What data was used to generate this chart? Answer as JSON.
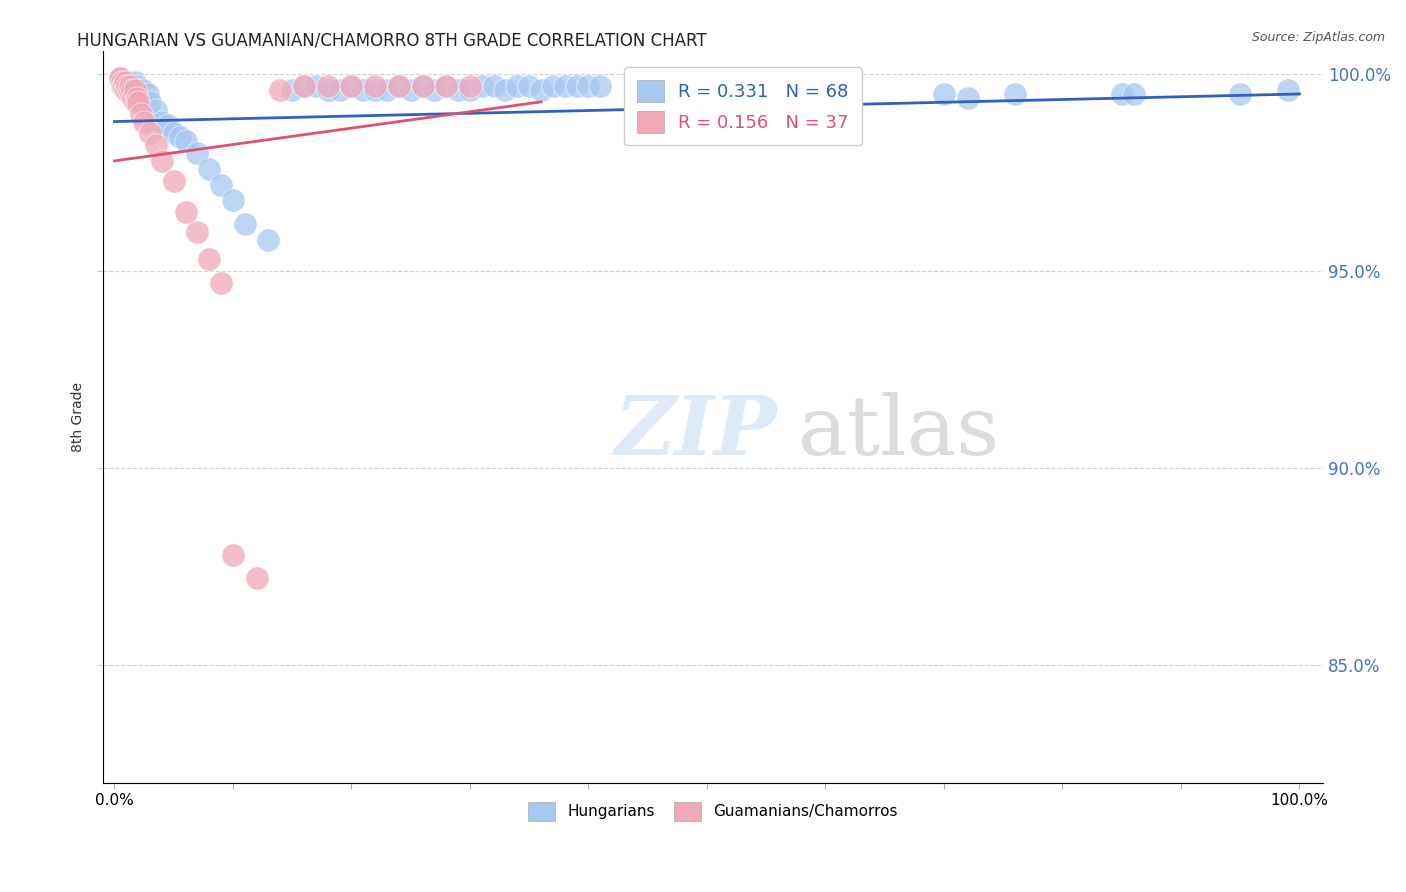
{
  "title": "HUNGARIAN VS GUAMANIAN/CHAMORRO 8TH GRADE CORRELATION CHART",
  "source": "Source: ZipAtlas.com",
  "ylabel": "8th Grade",
  "xlim": [
    0.0,
    1.0
  ],
  "ylim": [
    0.82,
    1.005
  ],
  "yticks": [
    0.85,
    0.9,
    0.95,
    1.0
  ],
  "ytick_labels": [
    "85.0%",
    "90.0%",
    "95.0%",
    "100.0%"
  ],
  "legend_blue_label": "Hungarians",
  "legend_pink_label": "Guamanians/Chamorros",
  "r_blue": 0.331,
  "n_blue": 68,
  "r_pink": 0.156,
  "n_pink": 37,
  "blue_color": "#a8c8f0",
  "pink_color": "#f0a8b8",
  "blue_line_color": "#3060c0",
  "pink_line_color": "#e05070",
  "blue_line": [
    [
      0.0,
      0.988
    ],
    [
      1.0,
      0.995
    ]
  ],
  "pink_line": [
    [
      0.0,
      0.978
    ],
    [
      0.36,
      0.993
    ]
  ],
  "blue_points_x": [
    0.005,
    0.006,
    0.007,
    0.008,
    0.009,
    0.01,
    0.011,
    0.012,
    0.013,
    0.014,
    0.015,
    0.016,
    0.017,
    0.018,
    0.019,
    0.02,
    0.022,
    0.024,
    0.025,
    0.028,
    0.03,
    0.035,
    0.04,
    0.045,
    0.05,
    0.055,
    0.06,
    0.07,
    0.08,
    0.09,
    0.1,
    0.11,
    0.13,
    0.15,
    0.16,
    0.17,
    0.18,
    0.19,
    0.2,
    0.21,
    0.22,
    0.23,
    0.24,
    0.25,
    0.26,
    0.27,
    0.28,
    0.29,
    0.3,
    0.31,
    0.32,
    0.33,
    0.34,
    0.35,
    0.36,
    0.37,
    0.38,
    0.39,
    0.4,
    0.41,
    0.48,
    0.7,
    0.72,
    0.76,
    0.85,
    0.86,
    0.95,
    0.99
  ],
  "blue_points_y": [
    0.999,
    0.997,
    0.998,
    0.997,
    0.998,
    0.996,
    0.997,
    0.997,
    0.998,
    0.997,
    0.997,
    0.996,
    0.998,
    0.996,
    0.997,
    0.996,
    0.995,
    0.996,
    0.994,
    0.995,
    0.993,
    0.991,
    0.988,
    0.987,
    0.985,
    0.984,
    0.983,
    0.98,
    0.976,
    0.972,
    0.968,
    0.962,
    0.958,
    0.996,
    0.997,
    0.997,
    0.996,
    0.996,
    0.997,
    0.996,
    0.996,
    0.996,
    0.997,
    0.996,
    0.997,
    0.996,
    0.997,
    0.996,
    0.996,
    0.997,
    0.997,
    0.996,
    0.997,
    0.997,
    0.996,
    0.997,
    0.997,
    0.997,
    0.997,
    0.997,
    0.992,
    0.995,
    0.994,
    0.995,
    0.995,
    0.995,
    0.995,
    0.996
  ],
  "pink_points_x": [
    0.005,
    0.006,
    0.007,
    0.008,
    0.009,
    0.01,
    0.011,
    0.012,
    0.013,
    0.014,
    0.015,
    0.016,
    0.017,
    0.018,
    0.019,
    0.02,
    0.022,
    0.025,
    0.03,
    0.035,
    0.04,
    0.05,
    0.06,
    0.07,
    0.08,
    0.09,
    0.1,
    0.12,
    0.14,
    0.16,
    0.18,
    0.2,
    0.22,
    0.24,
    0.26,
    0.28,
    0.3
  ],
  "pink_points_y": [
    0.999,
    0.998,
    0.997,
    0.997,
    0.998,
    0.996,
    0.997,
    0.996,
    0.997,
    0.995,
    0.996,
    0.994,
    0.996,
    0.993,
    0.994,
    0.993,
    0.99,
    0.988,
    0.985,
    0.982,
    0.978,
    0.973,
    0.965,
    0.96,
    0.953,
    0.947,
    0.878,
    0.872,
    0.996,
    0.997,
    0.997,
    0.997,
    0.997,
    0.997,
    0.997,
    0.997,
    0.997
  ]
}
